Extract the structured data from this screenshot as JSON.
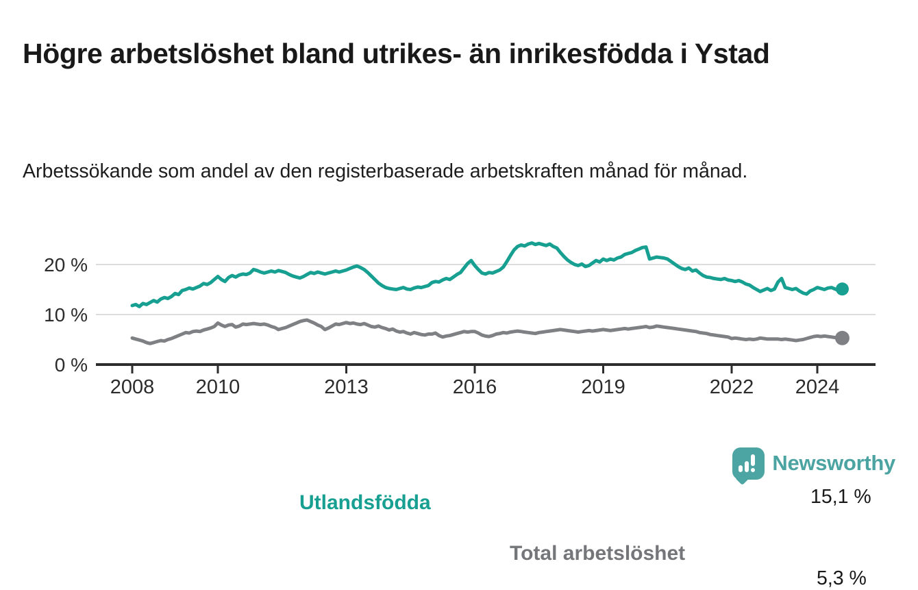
{
  "header": {
    "title": "Högre arbetslöshet bland utrikes- än inrikesfödda i Ystad",
    "subtitle": "Arbetssökande som andel av den registerbaserade arbetskraften månad för månad."
  },
  "chart_data": {
    "type": "line",
    "unit": "%",
    "x_start_year": 2008,
    "points_per_year": 12,
    "x_end": "2024-08",
    "grid": "horizontal",
    "y_axis": {
      "ticks": [
        {
          "value": 0,
          "label": "0 %"
        },
        {
          "value": 10,
          "label": "10 %"
        },
        {
          "value": 20,
          "label": "20 %"
        }
      ]
    },
    "x_axis": {
      "ticks": [
        {
          "year": 2008,
          "label": "2008"
        },
        {
          "year": 2010,
          "label": "2010"
        },
        {
          "year": 2013,
          "label": "2013"
        },
        {
          "year": 2016,
          "label": "2016"
        },
        {
          "year": 2019,
          "label": "2019"
        },
        {
          "year": 2022,
          "label": "2022"
        },
        {
          "year": 2024,
          "label": "2024"
        }
      ]
    },
    "series": [
      {
        "name": "Utlandsfödda",
        "color": "#17a091",
        "end_label": "15,1 %",
        "end_value": 15.1,
        "values": [
          11.8,
          12.0,
          11.6,
          12.2,
          12.0,
          12.4,
          12.8,
          12.5,
          13.1,
          13.4,
          13.2,
          13.6,
          14.2,
          14.0,
          14.8,
          15.0,
          15.3,
          15.1,
          15.4,
          15.7,
          16.2,
          16.0,
          16.4,
          17.0,
          17.6,
          17.0,
          16.6,
          17.4,
          17.8,
          17.5,
          17.9,
          18.1,
          18.0,
          18.3,
          19.0,
          18.8,
          18.5,
          18.3,
          18.5,
          18.7,
          18.5,
          18.8,
          18.6,
          18.4,
          18.0,
          17.7,
          17.5,
          17.3,
          17.6,
          18.0,
          18.4,
          18.2,
          18.5,
          18.3,
          18.1,
          18.3,
          18.5,
          18.7,
          18.5,
          18.7,
          18.9,
          19.2,
          19.5,
          19.7,
          19.4,
          19.0,
          18.4,
          17.7,
          17.0,
          16.3,
          15.8,
          15.4,
          15.2,
          15.1,
          15.0,
          15.2,
          15.4,
          15.1,
          15.0,
          15.3,
          15.5,
          15.4,
          15.6,
          15.8,
          16.4,
          16.6,
          16.5,
          16.9,
          17.2,
          17.0,
          17.5,
          18.0,
          18.4,
          19.3,
          20.2,
          20.8,
          19.8,
          19.0,
          18.3,
          18.1,
          18.4,
          18.3,
          18.6,
          18.9,
          19.5,
          20.6,
          21.8,
          22.9,
          23.6,
          23.9,
          23.7,
          24.1,
          24.3,
          24.0,
          24.2,
          24.0,
          23.8,
          24.1,
          23.6,
          23.3,
          22.4,
          21.6,
          20.9,
          20.4,
          20.0,
          19.8,
          20.1,
          19.6,
          19.8,
          20.3,
          20.8,
          20.5,
          21.1,
          20.8,
          21.1,
          20.9,
          21.3,
          21.5,
          22.0,
          22.2,
          22.4,
          22.8,
          23.1,
          23.4,
          23.5,
          21.1,
          21.3,
          21.5,
          21.4,
          21.3,
          21.1,
          20.6,
          20.1,
          19.6,
          19.2,
          19.0,
          19.3,
          18.7,
          18.9,
          18.3,
          17.8,
          17.5,
          17.4,
          17.2,
          17.1,
          17.0,
          17.2,
          16.9,
          16.8,
          16.6,
          16.8,
          16.5,
          16.1,
          15.9,
          15.4,
          15.0,
          14.6,
          14.9,
          15.2,
          14.8,
          15.1,
          16.5,
          17.2,
          15.4,
          15.2,
          15.0,
          15.2,
          14.7,
          14.3,
          14.1,
          14.7,
          15.0,
          15.4,
          15.2,
          15.0,
          15.3,
          15.4,
          15.1,
          14.8,
          15.1
        ]
      },
      {
        "name": "Total arbetslöshet",
        "color": "#7f8083",
        "end_label": "5,3 %",
        "end_value": 5.3,
        "values": [
          5.3,
          5.1,
          4.9,
          4.7,
          4.4,
          4.2,
          4.4,
          4.6,
          4.8,
          4.7,
          5.0,
          5.2,
          5.5,
          5.8,
          6.1,
          6.4,
          6.3,
          6.6,
          6.7,
          6.6,
          6.9,
          7.1,
          7.3,
          7.6,
          8.3,
          7.9,
          7.6,
          7.9,
          8.0,
          7.5,
          7.7,
          8.1,
          8.0,
          8.1,
          8.2,
          8.1,
          8.0,
          8.1,
          7.9,
          7.6,
          7.4,
          7.0,
          7.2,
          7.4,
          7.7,
          8.0,
          8.3,
          8.6,
          8.8,
          8.9,
          8.6,
          8.3,
          7.9,
          7.6,
          7.0,
          7.3,
          7.7,
          8.1,
          8.0,
          8.2,
          8.4,
          8.2,
          8.3,
          8.1,
          8.0,
          8.2,
          7.9,
          7.6,
          7.5,
          7.7,
          7.4,
          7.2,
          6.9,
          7.1,
          6.7,
          6.5,
          6.6,
          6.3,
          6.1,
          6.4,
          6.2,
          6.0,
          5.9,
          6.1,
          6.1,
          6.3,
          5.8,
          5.5,
          5.7,
          5.8,
          6.0,
          6.2,
          6.4,
          6.6,
          6.5,
          6.6,
          6.6,
          6.3,
          5.9,
          5.7,
          5.6,
          5.8,
          6.1,
          6.2,
          6.4,
          6.3,
          6.5,
          6.6,
          6.7,
          6.6,
          6.5,
          6.4,
          6.3,
          6.2,
          6.4,
          6.5,
          6.6,
          6.7,
          6.8,
          6.9,
          7.0,
          6.9,
          6.8,
          6.7,
          6.6,
          6.5,
          6.6,
          6.7,
          6.8,
          6.7,
          6.8,
          6.9,
          7.0,
          6.9,
          6.8,
          6.9,
          7.0,
          7.1,
          7.2,
          7.1,
          7.2,
          7.3,
          7.4,
          7.5,
          7.6,
          7.4,
          7.5,
          7.7,
          7.6,
          7.5,
          7.4,
          7.3,
          7.2,
          7.1,
          7.0,
          6.9,
          6.8,
          6.7,
          6.6,
          6.4,
          6.3,
          6.2,
          6.0,
          5.9,
          5.8,
          5.7,
          5.6,
          5.5,
          5.2,
          5.3,
          5.2,
          5.1,
          5.0,
          5.1,
          5.0,
          5.1,
          5.3,
          5.2,
          5.1,
          5.1,
          5.1,
          5.1,
          5.0,
          5.1,
          5.0,
          4.9,
          4.8,
          4.9,
          5.0,
          5.2,
          5.4,
          5.6,
          5.7,
          5.6,
          5.7,
          5.6,
          5.5,
          5.4,
          5.3,
          5.3
        ]
      }
    ],
    "colors": {
      "grid": "#dcdcdc",
      "axis": "#2d2d2d",
      "tick_text": "#2b2b2b"
    }
  },
  "footer": {
    "brand": "Newsworthy",
    "brand_color": "#4ba4a1"
  }
}
